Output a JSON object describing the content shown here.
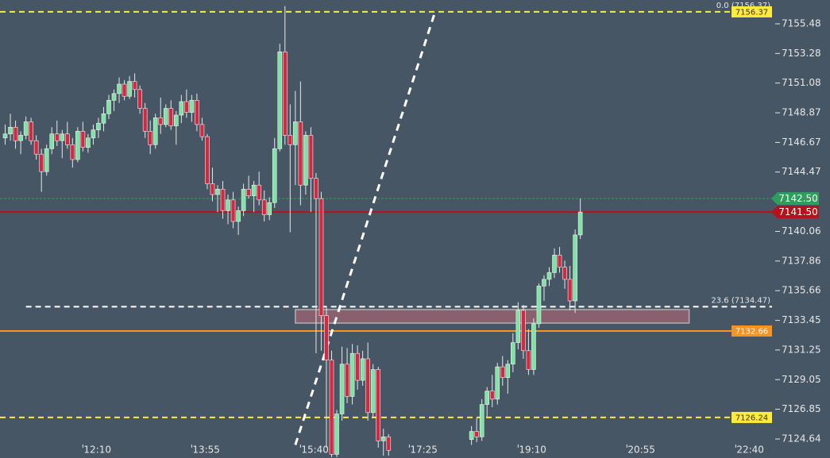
{
  "chart_data": {
    "type": "candlestick",
    "xlim": [
      "10:50",
      "23:15"
    ],
    "ylim": [
      7124.23,
      7157.25
    ],
    "xticks": [
      "12:10",
      "13:55",
      "15:40",
      "17:25",
      "19:10",
      "20:55",
      "22:40"
    ],
    "yticks": [
      7155.48,
      7153.28,
      7151.08,
      7148.87,
      7146.67,
      7144.47,
      7140.06,
      7137.86,
      7135.66,
      7133.45,
      7131.25,
      7129.05,
      7126.85,
      7124.64
    ],
    "up_color": "#7fe3a4",
    "down_color": "#d9263f",
    "x": [
      "10:55",
      "11:00",
      "11:05",
      "11:10",
      "11:15",
      "11:20",
      "11:25",
      "11:30",
      "11:35",
      "11:40",
      "11:45",
      "11:50",
      "11:55",
      "12:00",
      "12:05",
      "12:10",
      "12:15",
      "12:20",
      "12:25",
      "12:30",
      "12:35",
      "12:40",
      "12:45",
      "12:50",
      "12:55",
      "13:00",
      "13:05",
      "13:10",
      "13:15",
      "13:20",
      "13:25",
      "13:30",
      "13:35",
      "13:40",
      "13:45",
      "13:50",
      "13:55",
      "14:00",
      "14:05",
      "14:10",
      "14:15",
      "14:20",
      "14:25",
      "14:30",
      "14:35",
      "14:40",
      "14:45",
      "14:50",
      "14:55",
      "15:00",
      "15:05",
      "15:10",
      "15:15",
      "15:20",
      "15:25",
      "15:30",
      "15:35",
      "15:40",
      "15:45",
      "15:50",
      "15:55",
      "16:00",
      "16:05",
      "16:10",
      "16:15",
      "16:20",
      "16:25",
      "16:30",
      "16:35",
      "16:40",
      "16:45",
      "16:50",
      "16:55",
      "17:00",
      "17:05",
      "18:25",
      "18:30",
      "18:35",
      "18:40",
      "18:45",
      "18:50",
      "18:55",
      "19:00",
      "19:05",
      "19:10",
      "19:15",
      "19:20",
      "19:25",
      "19:30",
      "19:35",
      "19:40",
      "19:45",
      "19:50",
      "19:55",
      "20:00",
      "20:05",
      "20:10"
    ],
    "open": [
      7147.0,
      7147.3,
      7147.8,
      7146.8,
      7147.2,
      7148.2,
      7146.8,
      7145.8,
      7144.5,
      7146.2,
      7147.3,
      7146.8,
      7147.3,
      7146.5,
      7145.4,
      7147.5,
      7146.3,
      7147.0,
      7147.6,
      7148.1,
      7148.8,
      7149.8,
      7150.3,
      7151.0,
      7150.1,
      7151.2,
      7150.6,
      7149.2,
      7147.5,
      7146.5,
      7148.5,
      7148.0,
      7149.2,
      7147.9,
      7148.7,
      7149.7,
      7148.9,
      7149.8,
      7148.0,
      7147.1,
      7143.6,
      7142.8,
      7143.2,
      7141.6,
      7142.4,
      7140.8,
      7141.6,
      7143.2,
      7142.7,
      7143.5,
      7142.4,
      7141.3,
      7142.2,
      7146.2,
      7153.4,
      7147.2,
      7146.5,
      7148.2,
      7143.5,
      7147.2,
      7144.0,
      7142.5,
      7133.8,
      7130.5,
      7123.5,
      7126.5,
      7130.2,
      7127.8,
      7131.0,
      7129.0,
      7130.6,
      7126.6,
      7129.8,
      7124.5,
      7124.8,
      7124.6,
      7125.2,
      7124.8,
      7127.2,
      7128.2,
      7127.6,
      7130.0,
      7129.2,
      7130.2,
      7131.8,
      7134.2,
      7131.2,
      7129.8,
      7133.2,
      7136.0,
      7136.5,
      7137.0,
      7138.3,
      7137.4,
      7136.5,
      7134.9,
      7139.8
    ],
    "high": [
      7148.0,
      7148.8,
      7148.3,
      7147.5,
      7148.6,
      7148.5,
      7147.2,
      7146.2,
      7146.5,
      7147.8,
      7148.3,
      7147.6,
      7148.2,
      7147.0,
      7147.8,
      7148.2,
      7147.3,
      7148.0,
      7148.5,
      7149.3,
      7150.2,
      7150.6,
      7151.5,
      7151.3,
      7151.6,
      7151.8,
      7150.9,
      7149.6,
      7148.3,
      7148.8,
      7150.0,
      7149.5,
      7149.8,
      7149.0,
      7150.2,
      7150.6,
      7150.2,
      7150.3,
      7148.5,
      7147.3,
      7144.8,
      7143.5,
      7143.8,
      7142.8,
      7143.0,
      7141.9,
      7143.6,
      7144.2,
      7143.8,
      7144.5,
      7143.1,
      7142.6,
      7147.0,
      7154.0,
      7156.8,
      7149.5,
      7150.5,
      7151.2,
      7147.5,
      7147.8,
      7144.4,
      7143.0,
      7134.5,
      7131.2,
      7126.8,
      7131.5,
      7131.4,
      7131.7,
      7131.6,
      7131.2,
      7131.8,
      7130.2,
      7130.0,
      7125.4,
      7125.0,
      7125.6,
      7126.2,
      7127.6,
      7128.5,
      7129.4,
      7130.3,
      7130.8,
      7130.5,
      7132.5,
      7134.8,
      7134.6,
      7132.8,
      7133.6,
      7136.2,
      7136.8,
      7137.4,
      7138.8,
      7138.9,
      7137.9,
      7137.5,
      7140.2,
      7142.5
    ],
    "low": [
      7146.5,
      7146.8,
      7146.2,
      7145.8,
      7146.9,
      7146.5,
      7145.4,
      7143.0,
      7144.2,
      7145.8,
      7146.4,
      7145.5,
      7146.2,
      7144.8,
      7145.2,
      7146.0,
      7145.9,
      7146.5,
      7147.0,
      7147.5,
      7148.4,
      7149.0,
      7149.6,
      7149.8,
      7149.9,
      7150.0,
      7148.8,
      7147.0,
      7145.8,
      7146.2,
      7147.3,
      7147.8,
      7147.6,
      7146.5,
      7148.1,
      7148.5,
      7148.2,
      7147.5,
      7146.8,
      7143.2,
      7142.3,
      7141.5,
      7141.0,
      7140.6,
      7140.3,
      7139.8,
      7141.2,
      7142.5,
      7141.5,
      7142.0,
      7140.8,
      7140.9,
      7141.8,
      7146.0,
      7146.5,
      7140.0,
      7143.5,
      7142.0,
      7142.8,
      7141.5,
      7131.0,
      7131.2,
      7124.0,
      7123.3,
      7123.3,
      7126.0,
      7127.3,
      7127.2,
      7128.3,
      7128.6,
      7126.0,
      7126.2,
      7124.0,
      7123.4,
      7123.4,
      7124.2,
      7124.4,
      7124.5,
      7126.3,
      7127.0,
      7127.2,
      7128.6,
      7128.0,
      7129.6,
      7131.3,
      7130.6,
      7129.4,
      7129.4,
      7132.9,
      7134.9,
      7136.0,
      7136.6,
      7137.0,
      7135.8,
      7134.2,
      7134.0,
      7139.5
    ],
    "close": [
      7147.3,
      7147.8,
      7146.8,
      7147.2,
      7148.2,
      7146.8,
      7145.8,
      7144.5,
      7146.2,
      7147.3,
      7146.8,
      7147.3,
      7146.5,
      7145.4,
      7147.5,
      7146.3,
      7147.0,
      7147.6,
      7148.1,
      7148.8,
      7149.8,
      7150.3,
      7151.0,
      7150.1,
      7151.2,
      7150.6,
      7149.2,
      7147.5,
      7146.5,
      7148.5,
      7148.0,
      7149.2,
      7147.9,
      7148.7,
      7149.7,
      7148.9,
      7149.8,
      7148.0,
      7147.1,
      7143.6,
      7142.8,
      7143.2,
      7141.6,
      7142.4,
      7140.8,
      7141.6,
      7143.2,
      7142.7,
      7143.5,
      7142.4,
      7141.3,
      7142.2,
      7146.2,
      7153.4,
      7147.2,
      7146.5,
      7148.2,
      7143.5,
      7147.2,
      7144.0,
      7142.5,
      7133.8,
      7130.5,
      7123.5,
      7126.5,
      7130.2,
      7127.8,
      7131.0,
      7129.0,
      7130.6,
      7126.6,
      7129.8,
      7124.5,
      7124.8,
      7123.8,
      7125.2,
      7124.8,
      7127.2,
      7128.2,
      7127.6,
      7130.0,
      7129.2,
      7130.2,
      7131.8,
      7134.2,
      7131.2,
      7129.8,
      7133.2,
      7136.0,
      7136.5,
      7137.0,
      7138.3,
      7137.4,
      7136.5,
      7134.9,
      7139.8,
      7141.5
    ],
    "zone": {
      "x": [
        "15:35",
        "21:55"
      ],
      "y": [
        7133.25,
        7134.25
      ],
      "color": "#a06470"
    },
    "trendline": {
      "x": [
        "15:35",
        "17:50"
      ],
      "y": [
        7124.2,
        7156.4
      ],
      "color": "#ffffff"
    },
    "levels": [
      {
        "value": 7156.37,
        "label": "0.0 (7156.37)",
        "tag": "7156.37",
        "color": "#ffeb3b",
        "style": "dashed",
        "tag_position": "plot",
        "tag_text_color": "#333333"
      },
      {
        "value": 7134.47,
        "label": "23.6 (7134.47)",
        "color": "#ffffff",
        "style": "dashed",
        "from": "11:15"
      },
      {
        "value": 7132.66,
        "tag": "7132.66",
        "color": "#f7931e",
        "style": "solid",
        "tag_position": "plot",
        "tag_text_color": "#ffffff"
      },
      {
        "value": 7126.24,
        "tag": "7126.24",
        "color": "#ffeb3b",
        "style": "dashed",
        "tag_position": "plot",
        "tag_text_color": "#333333"
      },
      {
        "value": 7142.5,
        "tag": "7142.50",
        "color": "#2e9e5b",
        "style": "dotted",
        "tag_position": "axis",
        "tag_text_color": "#ffffff"
      },
      {
        "value": 7141.5,
        "tag": "7141.50",
        "color": "#b5121b",
        "style": "solid",
        "tag_position": "axis",
        "tag_text_color": "#ffffff"
      }
    ]
  }
}
